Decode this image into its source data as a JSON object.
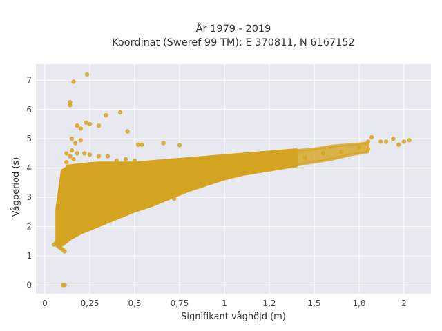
{
  "chart_data": {
    "type": "scatter",
    "title": "År 1979 - 2019",
    "subtitle": "Koordinat (Sweref 99 TM): E 370811, N 6167152",
    "xlabel": "Signifikant våghöjd (m)",
    "ylabel": "Vågperiod (s)",
    "xlim": [
      -0.05,
      2.15
    ],
    "ylim": [
      -0.3,
      7.55
    ],
    "xticks": [
      0,
      0.25,
      0.5,
      0.75,
      1,
      1.25,
      1.5,
      1.75,
      2
    ],
    "xtick_labels": [
      "0",
      "0,25",
      "0,5",
      "0,75",
      "1",
      "1,2",
      "1,5",
      "1,8",
      "2"
    ],
    "yticks": [
      0,
      1,
      2,
      3,
      4,
      5,
      6,
      7
    ],
    "ytick_labels": [
      "0",
      "1",
      "2",
      "3",
      "4",
      "5",
      "6",
      "7"
    ],
    "grid": true,
    "point_color": "#d4a421",
    "plot_background": "#e8e8f0",
    "points": [
      [
        0.05,
        1.38
      ],
      [
        0.06,
        1.42
      ],
      [
        0.07,
        1.5
      ],
      [
        0.08,
        1.3
      ],
      [
        0.08,
        1.6
      ],
      [
        0.09,
        1.25
      ],
      [
        0.09,
        1.8
      ],
      [
        0.1,
        1.2
      ],
      [
        0.1,
        2.1
      ],
      [
        0.1,
        2.5
      ],
      [
        0.11,
        1.15
      ],
      [
        0.11,
        2.8
      ],
      [
        0.11,
        3.1
      ],
      [
        0.12,
        3.5
      ],
      [
        0.12,
        3.9
      ],
      [
        0.12,
        4.2
      ],
      [
        0.12,
        4.5
      ],
      [
        0.13,
        4.05
      ],
      [
        0.13,
        3.7
      ],
      [
        0.14,
        3.3
      ],
      [
        0.14,
        4.4
      ],
      [
        0.15,
        3.9
      ],
      [
        0.15,
        4.6
      ],
      [
        0.15,
        5.0
      ],
      [
        0.16,
        4.3
      ],
      [
        0.17,
        4.85
      ],
      [
        0.18,
        4.5
      ],
      [
        0.2,
        4.95
      ],
      [
        0.22,
        4.5
      ],
      [
        0.25,
        4.45
      ],
      [
        0.3,
        4.4
      ],
      [
        0.35,
        4.4
      ],
      [
        0.4,
        4.25
      ],
      [
        0.45,
        4.3
      ],
      [
        0.5,
        4.25
      ],
      [
        0.1,
        0.0
      ],
      [
        0.11,
        0.0
      ],
      [
        0.14,
        6.25
      ],
      [
        0.14,
        6.15
      ],
      [
        0.16,
        6.95
      ],
      [
        0.235,
        7.2
      ],
      [
        0.18,
        5.45
      ],
      [
        0.2,
        5.35
      ],
      [
        0.23,
        5.55
      ],
      [
        0.25,
        5.5
      ],
      [
        0.3,
        5.45
      ],
      [
        0.34,
        5.8
      ],
      [
        0.42,
        5.9
      ],
      [
        0.46,
        5.25
      ],
      [
        0.52,
        4.8
      ],
      [
        0.54,
        4.8
      ],
      [
        0.66,
        4.85
      ],
      [
        0.75,
        4.78
      ],
      [
        0.68,
        3.0
      ],
      [
        0.72,
        2.95
      ],
      [
        0.85,
        3.45
      ],
      [
        0.95,
        3.7
      ],
      [
        1.0,
        4.0
      ],
      [
        1.05,
        3.9
      ],
      [
        1.15,
        4.1
      ],
      [
        1.25,
        4.25
      ],
      [
        1.35,
        4.3
      ],
      [
        1.45,
        4.35
      ],
      [
        1.55,
        4.5
      ],
      [
        1.65,
        4.55
      ],
      [
        1.75,
        4.7
      ],
      [
        1.8,
        4.9
      ],
      [
        1.82,
        5.05
      ],
      [
        1.8,
        4.65
      ],
      [
        1.87,
        4.9
      ],
      [
        1.9,
        4.9
      ],
      [
        1.94,
        5.0
      ],
      [
        1.97,
        4.8
      ],
      [
        2.0,
        4.9
      ],
      [
        2.03,
        4.95
      ]
    ]
  }
}
